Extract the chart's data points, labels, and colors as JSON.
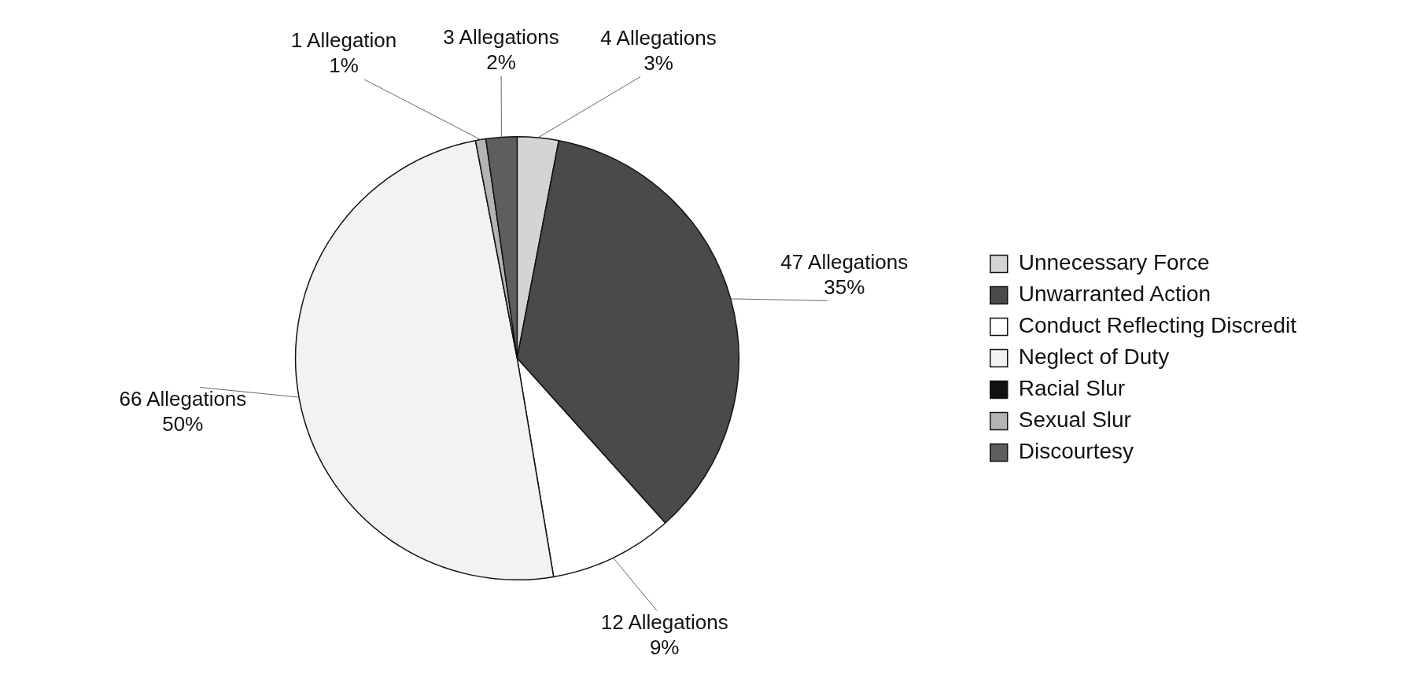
{
  "chart_data": {
    "type": "pie",
    "categories": [
      "Unnecessary Force",
      "Unwarranted Action",
      "Conduct Reflecting Discredit",
      "Neglect of Duty",
      "Racial Slur",
      "Sexual Slur",
      "Discourtesy"
    ],
    "values": [
      4,
      47,
      12,
      66,
      0,
      1,
      3
    ],
    "colors": [
      "#d4d4d4",
      "#4a4a4a",
      "#ffffff",
      "#f2f2f2",
      "#111111",
      "#b4b4b4",
      "#5e5e5e"
    ],
    "value_labels": [
      "4 Allegations\n3%",
      "47 Allegations\n35%",
      "12 Allegations\n9%",
      "66 Allegations\n50%",
      null,
      "1 Allegation\n1%",
      "3 Allegations\n2%"
    ],
    "legend": "right"
  }
}
